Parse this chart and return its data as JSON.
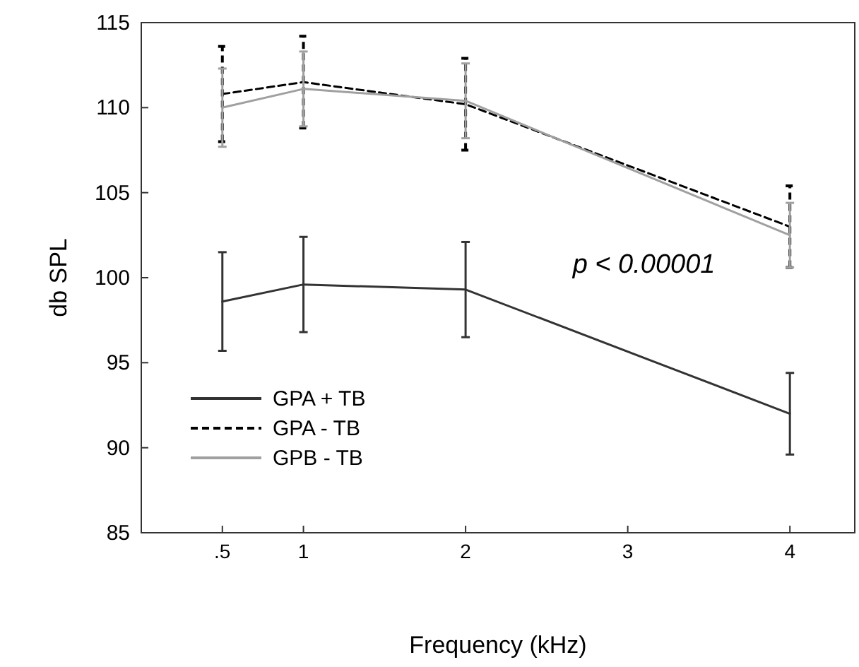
{
  "chart_data": {
    "type": "line",
    "xlabel": "Frequency (kHz)",
    "ylabel": "db SPL",
    "x": [
      0.5,
      1,
      2,
      4
    ],
    "xlim": [
      0,
      4.4
    ],
    "xticks": [
      {
        "value": 0.5,
        "label": ".5"
      },
      1,
      2,
      3,
      4
    ],
    "ylim": [
      85,
      115
    ],
    "yticks": [
      85,
      90,
      95,
      100,
      105,
      110,
      115
    ],
    "grid": false,
    "legend": "bottom left",
    "marker": "none",
    "annotations": [
      "p < 0.00001"
    ],
    "series": [
      {
        "name": "GPA + TB",
        "color": "#333333",
        "line_style": "solid",
        "values": [
          98.6,
          99.6,
          99.3,
          92.0
        ],
        "errors": [
          2.9,
          2.8,
          2.8,
          2.4
        ]
      },
      {
        "name": "GPA - TB",
        "color": "#000000",
        "line_style": "dashed",
        "values": [
          110.8,
          111.5,
          110.2,
          103.0
        ],
        "errors": [
          2.8,
          2.7,
          2.7,
          2.4
        ]
      },
      {
        "name": "GPB - TB",
        "color": "#a0a0a0",
        "line_style": "solid",
        "values": [
          110.0,
          111.1,
          110.4,
          102.5
        ],
        "errors": [
          2.3,
          2.2,
          2.2,
          1.9
        ]
      }
    ]
  }
}
